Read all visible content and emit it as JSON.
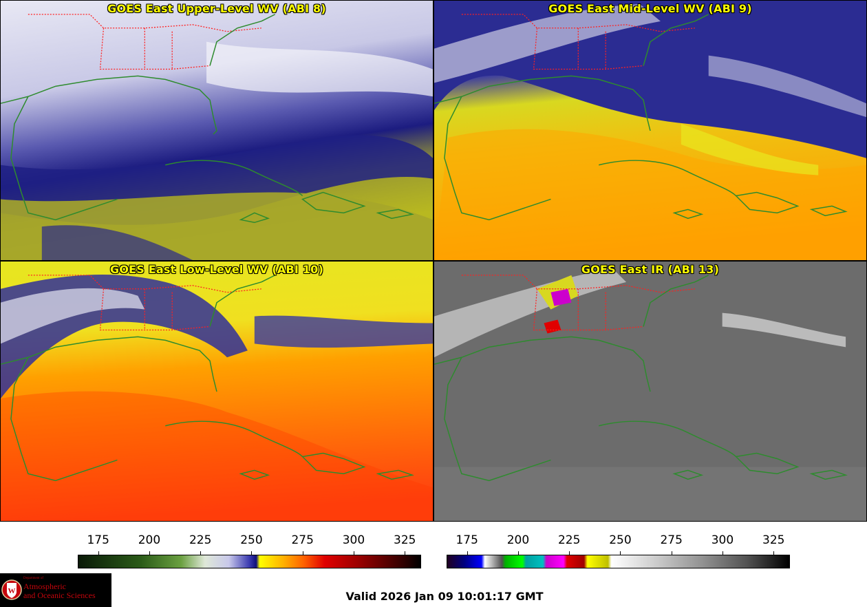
{
  "panels": [
    {
      "title": "GOES East Upper-Level WV (ABI 8)",
      "palette": "wv_upper"
    },
    {
      "title": "GOES East Mid-Level WV (ABI 9)",
      "palette": "wv_mid"
    },
    {
      "title": "GOES East Low-Level WV (ABI 10)",
      "palette": "wv_low"
    },
    {
      "title": "GOES East IR (ABI 13)",
      "palette": "ir"
    }
  ],
  "colorbars": {
    "wv": {
      "ticks": [
        "175",
        "200",
        "225",
        "250",
        "275",
        "300",
        "325"
      ],
      "range": [
        165,
        333
      ],
      "tick_values": [
        175,
        200,
        225,
        250,
        275,
        300,
        325
      ]
    },
    "ir": {
      "ticks": [
        "175",
        "200",
        "225",
        "250",
        "275",
        "300",
        "325"
      ],
      "range": [
        165,
        333
      ],
      "tick_values": [
        175,
        200,
        225,
        250,
        275,
        300,
        325
      ]
    }
  },
  "valid_time": "Valid 2026 Jan 09 10:01:17 GMT",
  "logo": {
    "line1": "Department of",
    "line2": "Atmospheric",
    "line3": "and Oceanic Sciences",
    "seal_letter": "W"
  },
  "colors": {
    "title_text": "#ffff00",
    "coastline": "#2e8b2e",
    "state_borders": "#ff2020",
    "logo_red": "#c5050c"
  }
}
